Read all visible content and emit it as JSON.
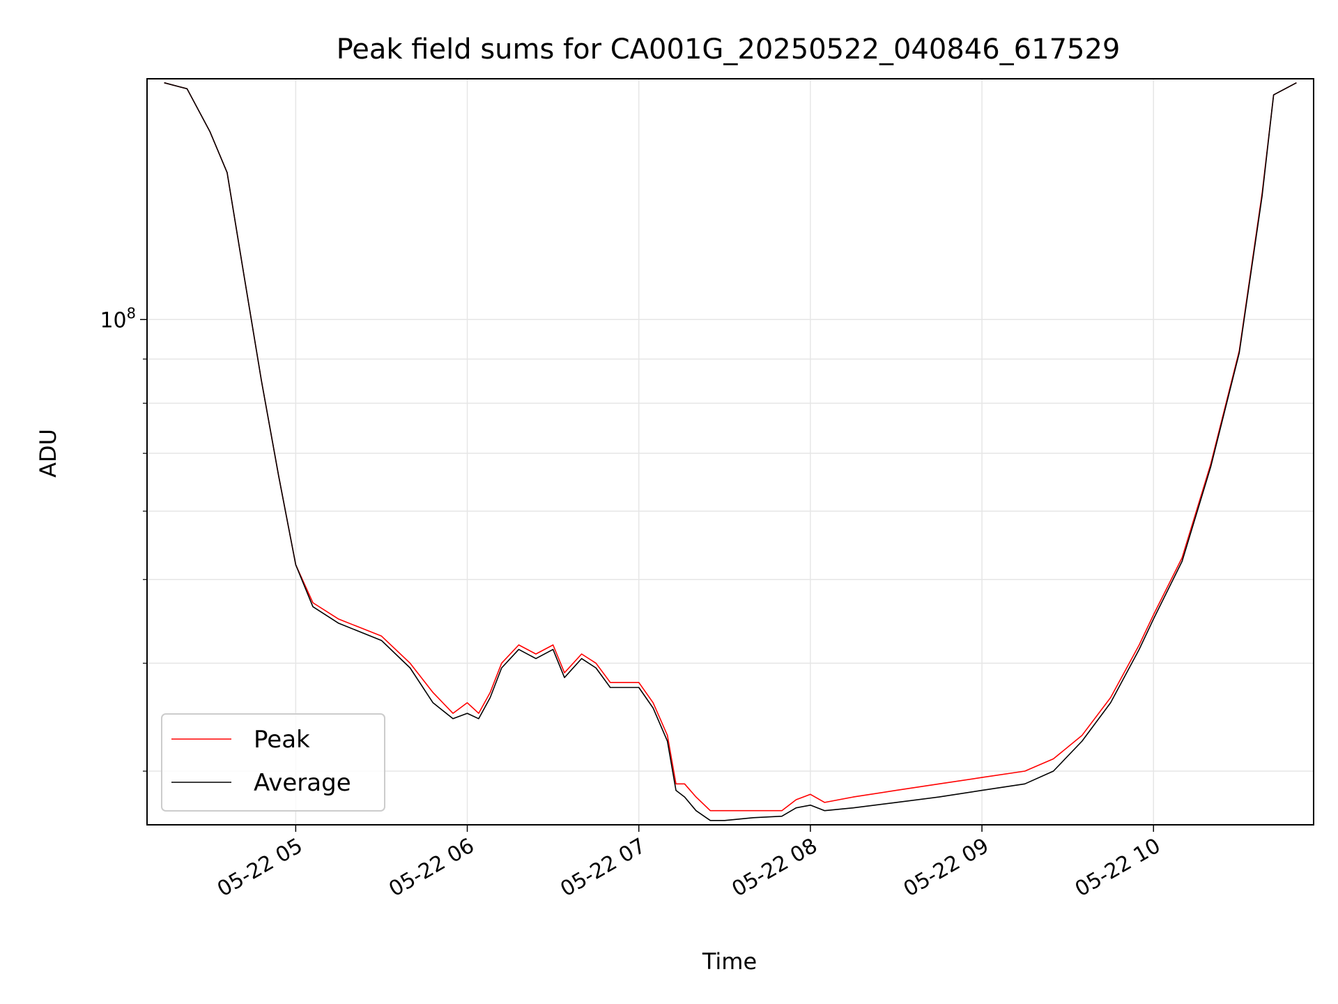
{
  "chart_data": {
    "type": "line",
    "title": "Peak field sums for CA001G_20250522_040846_617529",
    "xlabel": "Time",
    "ylabel": "ADU",
    "xscale": "time",
    "yscale": "log",
    "xlim": [
      "2025-05-22 04:08",
      "2025-05-22 10:56"
    ],
    "ylim": [
      26000000,
      190000000
    ],
    "grid": true,
    "legend_position": "lower-left",
    "x_ticks": [
      {
        "value": "2025-05-22 05:00",
        "label": "05-22 05"
      },
      {
        "value": "2025-05-22 06:00",
        "label": "05-22 06"
      },
      {
        "value": "2025-05-22 07:00",
        "label": "05-22 07"
      },
      {
        "value": "2025-05-22 08:00",
        "label": "05-22 08"
      },
      {
        "value": "2025-05-22 09:00",
        "label": "05-22 09"
      },
      {
        "value": "2025-05-22 10:00",
        "label": "05-22 10"
      }
    ],
    "y_major_ticks": [
      {
        "value": 100000000,
        "label_base": "10",
        "label_exp": "8"
      }
    ],
    "y_minor_ticks": [
      30000000,
      40000000,
      50000000,
      60000000,
      70000000,
      80000000,
      90000000
    ],
    "series": [
      {
        "name": "Peak",
        "color": "#ff0000",
        "x": [
          "2025-05-22 04:14",
          "2025-05-22 04:22",
          "2025-05-22 04:30",
          "2025-05-22 04:36",
          "2025-05-22 04:42",
          "2025-05-22 04:48",
          "2025-05-22 04:54",
          "2025-05-22 05:00",
          "2025-05-22 05:06",
          "2025-05-22 05:15",
          "2025-05-22 05:30",
          "2025-05-22 05:40",
          "2025-05-22 05:48",
          "2025-05-22 05:55",
          "2025-05-22 06:00",
          "2025-05-22 06:04",
          "2025-05-22 06:08",
          "2025-05-22 06:12",
          "2025-05-22 06:18",
          "2025-05-22 06:24",
          "2025-05-22 06:30",
          "2025-05-22 06:34",
          "2025-05-22 06:40",
          "2025-05-22 06:45",
          "2025-05-22 06:50",
          "2025-05-22 06:55",
          "2025-05-22 07:00",
          "2025-05-22 07:05",
          "2025-05-22 07:10",
          "2025-05-22 07:13",
          "2025-05-22 07:16",
          "2025-05-22 07:20",
          "2025-05-22 07:25",
          "2025-05-22 07:30",
          "2025-05-22 07:40",
          "2025-05-22 07:50",
          "2025-05-22 07:55",
          "2025-05-22 08:00",
          "2025-05-22 08:05",
          "2025-05-22 08:15",
          "2025-05-22 08:30",
          "2025-05-22 08:45",
          "2025-05-22 09:00",
          "2025-05-22 09:15",
          "2025-05-22 09:25",
          "2025-05-22 09:35",
          "2025-05-22 09:45",
          "2025-05-22 09:55",
          "2025-05-22 10:00",
          "2025-05-22 10:10",
          "2025-05-22 10:20",
          "2025-05-22 10:30",
          "2025-05-22 10:38",
          "2025-05-22 10:42",
          "2025-05-22 10:50"
        ],
        "y": [
          188000000,
          185000000,
          165000000,
          148000000,
          112000000,
          85000000,
          66000000,
          52000000,
          47000000,
          45000000,
          43000000,
          40000000,
          37000000,
          35000000,
          36000000,
          35000000,
          37000000,
          40000000,
          42000000,
          41000000,
          42000000,
          39000000,
          41000000,
          40000000,
          38000000,
          38000000,
          38000000,
          36000000,
          33000000,
          29000000,
          29000000,
          28000000,
          27000000,
          27000000,
          27000000,
          27000000,
          27800000,
          28200000,
          27600000,
          28000000,
          28500000,
          29000000,
          29500000,
          30000000,
          31000000,
          33000000,
          36500000,
          42000000,
          45500000,
          53000000,
          68000000,
          92000000,
          140000000,
          182000000,
          188000000
        ]
      },
      {
        "name": "Average",
        "color": "#000000",
        "x": [
          "2025-05-22 04:14",
          "2025-05-22 04:22",
          "2025-05-22 04:30",
          "2025-05-22 04:36",
          "2025-05-22 04:42",
          "2025-05-22 04:48",
          "2025-05-22 04:54",
          "2025-05-22 05:00",
          "2025-05-22 05:06",
          "2025-05-22 05:15",
          "2025-05-22 05:30",
          "2025-05-22 05:40",
          "2025-05-22 05:48",
          "2025-05-22 05:55",
          "2025-05-22 06:00",
          "2025-05-22 06:04",
          "2025-05-22 06:08",
          "2025-05-22 06:12",
          "2025-05-22 06:18",
          "2025-05-22 06:24",
          "2025-05-22 06:30",
          "2025-05-22 06:34",
          "2025-05-22 06:40",
          "2025-05-22 06:45",
          "2025-05-22 06:50",
          "2025-05-22 06:55",
          "2025-05-22 07:00",
          "2025-05-22 07:05",
          "2025-05-22 07:10",
          "2025-05-22 07:13",
          "2025-05-22 07:16",
          "2025-05-22 07:20",
          "2025-05-22 07:25",
          "2025-05-22 07:30",
          "2025-05-22 07:40",
          "2025-05-22 07:50",
          "2025-05-22 07:55",
          "2025-05-22 08:00",
          "2025-05-22 08:05",
          "2025-05-22 08:15",
          "2025-05-22 08:30",
          "2025-05-22 08:45",
          "2025-05-22 09:00",
          "2025-05-22 09:15",
          "2025-05-22 09:25",
          "2025-05-22 09:35",
          "2025-05-22 09:45",
          "2025-05-22 09:55",
          "2025-05-22 10:00",
          "2025-05-22 10:10",
          "2025-05-22 10:20",
          "2025-05-22 10:30",
          "2025-05-22 10:38",
          "2025-05-22 10:42",
          "2025-05-22 10:50"
        ],
        "y": [
          188000000,
          185000000,
          165000000,
          148000000,
          112000000,
          85000000,
          66000000,
          52000000,
          46500000,
          44500000,
          42500000,
          39500000,
          36000000,
          34500000,
          35000000,
          34500000,
          36500000,
          39500000,
          41500000,
          40500000,
          41500000,
          38500000,
          40500000,
          39500000,
          37500000,
          37500000,
          37500000,
          35500000,
          32500000,
          28500000,
          28000000,
          27000000,
          26300000,
          26300000,
          26500000,
          26600000,
          27200000,
          27400000,
          27000000,
          27200000,
          27600000,
          28000000,
          28500000,
          29000000,
          30000000,
          32500000,
          36000000,
          41500000,
          45000000,
          52500000,
          67500000,
          91500000,
          139000000,
          182000000,
          188000000
        ]
      }
    ]
  }
}
